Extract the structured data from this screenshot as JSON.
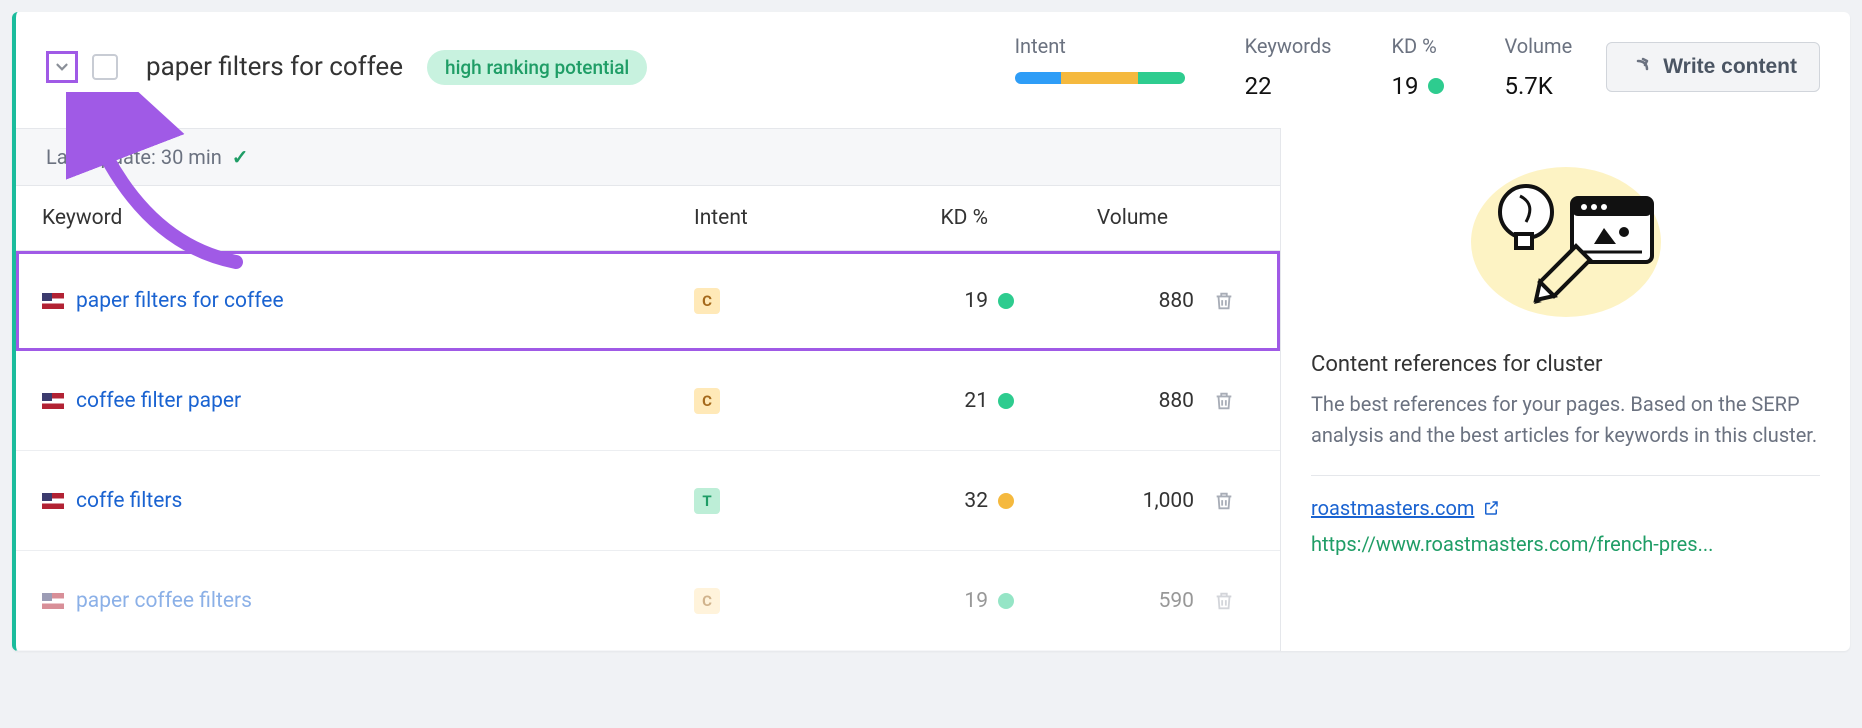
{
  "header": {
    "title": "paper filters for coffee",
    "potential_badge": "high ranking potential",
    "metrics": {
      "intent_label": "Intent",
      "intent_segments": [
        {
          "color": "#2e9df7",
          "flex": "1.2"
        },
        {
          "color": "#f5b93e",
          "flex": "2"
        },
        {
          "color": "#2ecc8f",
          "flex": "1.2"
        }
      ],
      "keywords_label": "Keywords",
      "keywords_value": "22",
      "kd_label": "KD %",
      "kd_value": "19",
      "kd_dot_color": "#2ecc8f",
      "volume_label": "Volume",
      "volume_value": "5.7K"
    },
    "write_button": "Write content"
  },
  "update_bar": {
    "text": "Last update: 30 min"
  },
  "table": {
    "columns": {
      "keyword": "Keyword",
      "intent": "Intent",
      "kd": "KD %",
      "volume": "Volume"
    },
    "rows": [
      {
        "keyword": "paper filters for coffee",
        "intent": "C",
        "kd": "19",
        "kd_color": "green",
        "volume": "880",
        "highlight": true
      },
      {
        "keyword": "coffee filter paper",
        "intent": "C",
        "kd": "21",
        "kd_color": "green",
        "volume": "880"
      },
      {
        "keyword": "coffe filters",
        "intent": "T",
        "kd": "32",
        "kd_color": "orange",
        "volume": "1,000"
      },
      {
        "keyword": "paper coffee filters",
        "intent": "C",
        "kd": "19",
        "kd_color": "green",
        "volume": "590",
        "faded": true
      }
    ]
  },
  "references": {
    "title": "Content references for cluster",
    "description": "The best references for your pages. Based on the SERP analysis and the best articles for keywords in this cluster.",
    "link_domain": "roastmasters.com",
    "link_url": "https://www.roastmasters.com/french-pres..."
  },
  "colors": {
    "accent_purple": "#a05ae6",
    "green": "#1f9d66",
    "link_blue": "#1a63d1",
    "border_green": "#1abc9c"
  }
}
